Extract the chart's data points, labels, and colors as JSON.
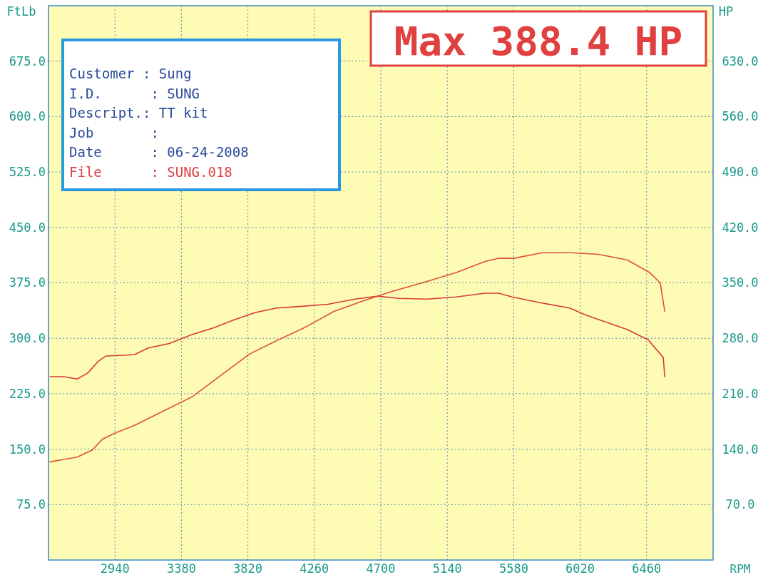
{
  "chart_data": {
    "type": "line",
    "xlabel": "RPM",
    "ylabel": "FtLb",
    "y2label": "HP",
    "annotations": [
      "Max 388.4 HP",
      "Customer : Sung",
      "I.D.      : SUNG",
      "Descript.: TT kit",
      "Job       :",
      "Date      : 06-24-2008",
      "File      : SUNG.018"
    ],
    "xlim": [
      2500,
      6900
    ],
    "xticks": [
      2940,
      3380,
      3820,
      4260,
      4700,
      5140,
      5580,
      6020,
      6460
    ],
    "ylim": [
      0,
      750
    ],
    "yticks": [
      {
        "value": 75,
        "label": "75.0"
      },
      {
        "value": 150,
        "label": "150.0"
      },
      {
        "value": 225,
        "label": "225.0"
      },
      {
        "value": 300,
        "label": "300.0"
      },
      {
        "value": 375,
        "label": "375.0"
      },
      {
        "value": 450,
        "label": "450.0"
      },
      {
        "value": 525,
        "label": "525.0"
      },
      {
        "value": 600,
        "label": "600.0"
      },
      {
        "value": 675,
        "label": "675.0"
      }
    ],
    "y2lim": [
      0,
      700
    ],
    "y2ticks": [
      {
        "value": 70,
        "label": "70.0"
      },
      {
        "value": 140,
        "label": "140.0"
      },
      {
        "value": 210,
        "label": "210.0"
      },
      {
        "value": 280,
        "label": "280.0"
      },
      {
        "value": 350,
        "label": "350.0"
      },
      {
        "value": 420,
        "label": "420.0"
      },
      {
        "value": 490,
        "label": "490.0"
      },
      {
        "value": 560,
        "label": "560.0"
      },
      {
        "value": 630,
        "label": "630.0"
      }
    ],
    "grid": true,
    "marker": "none",
    "line_style": "solid",
    "series": [
      {
        "color": "#d83a3a",
        "x": [
          2510,
          2600,
          2690,
          2760,
          2830,
          2880,
          3000,
          3070,
          3160,
          3300,
          3450,
          3590,
          3730,
          3870,
          4010,
          4160,
          4350,
          4530,
          4680,
          4820,
          5010,
          5200,
          5390,
          5480,
          5570,
          5760,
          5950,
          6050,
          6190,
          6330,
          6470,
          6570,
          6580
        ],
        "values": [
          248,
          248,
          245,
          253,
          269,
          276,
          277,
          278,
          287,
          293,
          305,
          314,
          325,
          335,
          341,
          343,
          346,
          353,
          357,
          354,
          353,
          356,
          361,
          361,
          356,
          348,
          341,
          332,
          322,
          312,
          298,
          274,
          248
        ]
      },
      {
        "color": "#e0503a",
        "axis": "y2",
        "x": [
          2510,
          2600,
          2690,
          2790,
          2860,
          2950,
          3070,
          3260,
          3450,
          3640,
          3830,
          4020,
          4200,
          4390,
          4580,
          4770,
          5010,
          5200,
          5390,
          5480,
          5580,
          5770,
          5960,
          6140,
          6330,
          6480,
          6550,
          6580
        ],
        "values": [
          124,
          127,
          130,
          139,
          153,
          161,
          170,
          188,
          206,
          233,
          260,
          278,
          294,
          314,
          327,
          339,
          352,
          363,
          377,
          381,
          381,
          388,
          388,
          386,
          379,
          363,
          350,
          314
        ]
      }
    ]
  }
}
